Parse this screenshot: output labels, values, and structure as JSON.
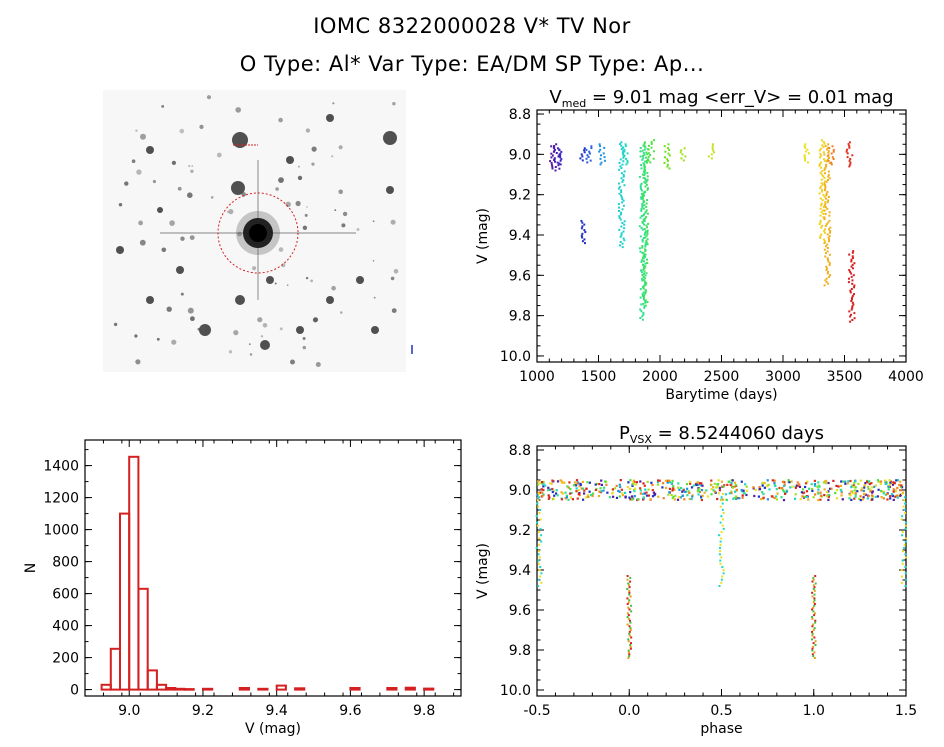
{
  "header": {
    "title_line1": "IOMC 8322000028    V* TV Nor",
    "title_line2": "O Type: Al*  Var Type: EA/DM  SP Type: Ap..."
  },
  "colors": {
    "hist": "#d42020",
    "reticle": "#d42020",
    "axis": "#000000"
  },
  "chart_data": [
    {
      "type": "scatter",
      "id": "lightcurve",
      "title_main": "V",
      "title_sub": "med",
      "title_rest": " = 9.01 mag <err_V> = 0.01 mag",
      "xlabel": "Barytime (days)",
      "ylabel": "V (mag)",
      "xlim": [
        1000,
        4000
      ],
      "ylim": [
        10.03,
        8.78
      ],
      "xticks": [
        1000,
        1500,
        2000,
        2500,
        3000,
        3500,
        4000
      ],
      "yticks": [
        8.8,
        9.0,
        9.2,
        9.4,
        9.6,
        9.8,
        10.0
      ],
      "clusters": [
        {
          "x": 1130,
          "color": "#5a1aa0",
          "y": [
            8.96,
            9.07
          ]
        },
        {
          "x": 1160,
          "color": "#4a1ab0",
          "y": [
            8.95,
            9.08
          ]
        },
        {
          "x": 1190,
          "color": "#3a2ac0",
          "y": [
            8.97,
            9.05
          ]
        },
        {
          "x": 1370,
          "color": "#2030c0",
          "y": [
            8.97,
            9.03
          ]
        },
        {
          "x": 1370,
          "color": "#2030c0",
          "y": [
            9.33,
            9.44
          ]
        },
        {
          "x": 1420,
          "color": "#2a60d8",
          "y": [
            8.96,
            9.04
          ]
        },
        {
          "x": 1530,
          "color": "#2090e0",
          "y": [
            8.95,
            9.05
          ]
        },
        {
          "x": 1690,
          "color": "#20d0d0",
          "y": [
            8.94,
            9.46
          ]
        },
        {
          "x": 1720,
          "color": "#20d8c0",
          "y": [
            8.95,
            9.05
          ]
        },
        {
          "x": 1860,
          "color": "#30e090",
          "y": [
            8.96,
            9.82
          ]
        },
        {
          "x": 1880,
          "color": "#40e060",
          "y": [
            8.94,
            9.75
          ]
        },
        {
          "x": 1930,
          "color": "#50e040",
          "y": [
            8.93,
            9.04
          ]
        },
        {
          "x": 2060,
          "color": "#70e020",
          "y": [
            8.95,
            9.07
          ]
        },
        {
          "x": 2190,
          "color": "#a0e020",
          "y": [
            8.97,
            9.03
          ]
        },
        {
          "x": 2420,
          "color": "#c8e020",
          "y": [
            8.95,
            9.02
          ]
        },
        {
          "x": 3200,
          "color": "#e8e020",
          "y": [
            8.95,
            9.04
          ]
        },
        {
          "x": 3320,
          "color": "#f0d020",
          "y": [
            8.93,
            9.44
          ]
        },
        {
          "x": 3360,
          "color": "#f0b020",
          "y": [
            8.95,
            9.65
          ]
        },
        {
          "x": 3390,
          "color": "#f08020",
          "y": [
            8.96,
            9.05
          ]
        },
        {
          "x": 3540,
          "color": "#e03020",
          "y": [
            8.94,
            9.06
          ]
        },
        {
          "x": 3560,
          "color": "#d82020",
          "y": [
            9.48,
            9.83
          ]
        }
      ]
    },
    {
      "type": "bar",
      "id": "histogram",
      "xlabel": "V (mag)",
      "ylabel": "N",
      "xlim": [
        8.88,
        9.9
      ],
      "ylim": [
        -40,
        1560
      ],
      "xticks": [
        9.0,
        9.2,
        9.4,
        9.6,
        9.8
      ],
      "yticks": [
        0,
        200,
        400,
        600,
        800,
        1000,
        1200,
        1400
      ],
      "bin_width": 0.025,
      "bins": [
        {
          "left": 8.925,
          "count": 30
        },
        {
          "left": 8.95,
          "count": 255
        },
        {
          "left": 8.975,
          "count": 1100
        },
        {
          "left": 9.0,
          "count": 1455
        },
        {
          "left": 9.025,
          "count": 630
        },
        {
          "left": 9.05,
          "count": 120
        },
        {
          "left": 9.075,
          "count": 30
        },
        {
          "left": 9.1,
          "count": 10
        },
        {
          "left": 9.125,
          "count": 5
        },
        {
          "left": 9.15,
          "count": 3
        },
        {
          "left": 9.2,
          "count": 5
        },
        {
          "left": 9.3,
          "count": 10
        },
        {
          "left": 9.35,
          "count": 5
        },
        {
          "left": 9.4,
          "count": 25
        },
        {
          "left": 9.45,
          "count": 8
        },
        {
          "left": 9.6,
          "count": 10
        },
        {
          "left": 9.7,
          "count": 10
        },
        {
          "left": 9.75,
          "count": 12
        },
        {
          "left": 9.8,
          "count": 6
        }
      ]
    },
    {
      "type": "scatter",
      "id": "phased",
      "title_main": "P",
      "title_sub": "VSX",
      "title_rest": " = 8.5244060 days",
      "xlabel": "phase",
      "ylabel": "V (mag)",
      "xlim": [
        -0.5,
        1.5
      ],
      "ylim": [
        10.03,
        8.78
      ],
      "xticks": [
        -0.5,
        0.0,
        0.5,
        1.0,
        1.5
      ],
      "yticks": [
        8.8,
        9.0,
        9.2,
        9.4,
        9.6,
        9.8,
        10.0
      ],
      "baseline_mag": 9.0,
      "primary_eclipse": {
        "phases": [
          0.0,
          1.0
        ],
        "ymin": 9.43,
        "ymax": 9.84
      },
      "secondary_eclipse": {
        "phases": [
          -0.5,
          0.5,
          1.5
        ],
        "ymin": 9.02,
        "ymax": 9.48
      }
    }
  ],
  "thumbnail": {
    "star_field": true
  }
}
